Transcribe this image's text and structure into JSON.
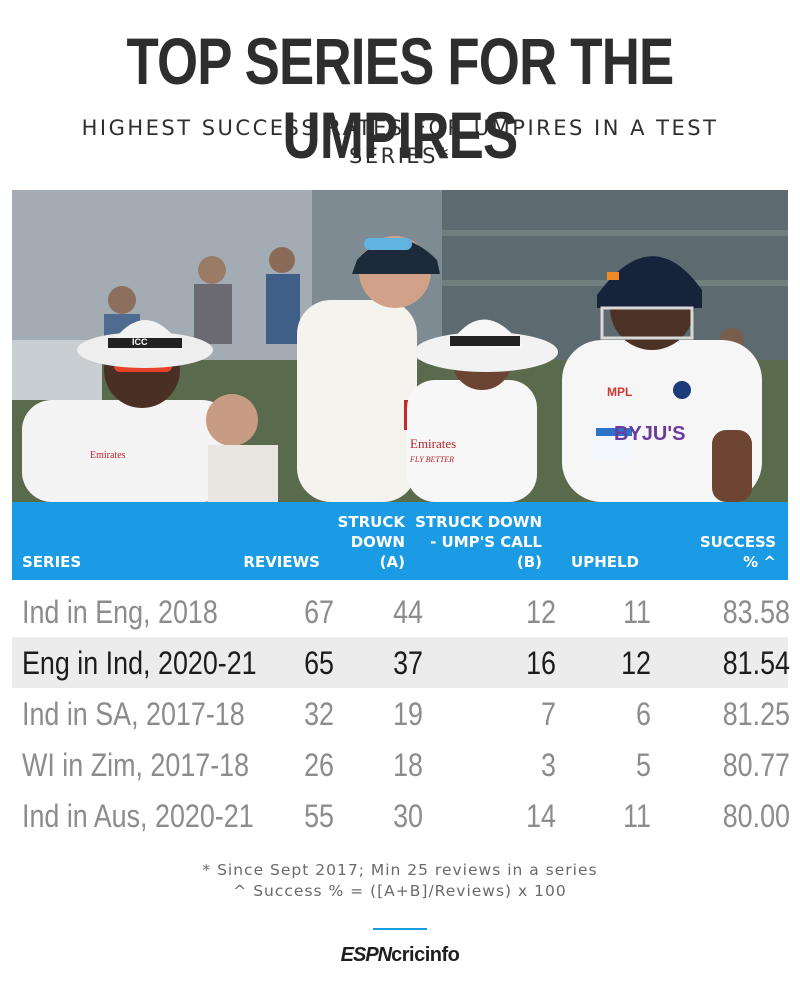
{
  "title": "TOP SERIES FOR THE UMPIRES",
  "subtitle": "HIGHEST SUCCESS RATES FOR UMPIRES IN A TEST SERIES*",
  "columns": {
    "series": "SERIES",
    "reviews": "REVIEWS",
    "struck_line1": "STRUCK",
    "struck_line2": "DOWN",
    "struck_line3": "(A)",
    "ump_line1": "STRUCK DOWN",
    "ump_line2": "- UMP'S CALL",
    "ump_line3": "(B)",
    "upheld": "UPHELD",
    "success_line1": "SUCCESS",
    "success_line2": "% ^"
  },
  "rows": [
    {
      "series": "Ind in Eng, 2018",
      "reviews": "67",
      "struck": "44",
      "ump": "12",
      "upheld": "11",
      "success": "83.58"
    },
    {
      "series": "Eng in Ind, 2020-21",
      "reviews": "65",
      "struck": "37",
      "ump": "16",
      "upheld": "12",
      "success": "81.54"
    },
    {
      "series": "Ind in SA, 2017-18",
      "reviews": "32",
      "struck": "19",
      "ump": "7",
      "upheld": "6",
      "success": "81.25"
    },
    {
      "series": "WI in Zim, 2017-18",
      "reviews": "26",
      "struck": "18",
      "ump": "3",
      "upheld": "5",
      "success": "80.77"
    },
    {
      "series": "Ind in Aus, 2020-21",
      "reviews": "55",
      "struck": "30",
      "ump": "14",
      "upheld": "11",
      "success": "80.00"
    }
  ],
  "highlighted_row": 1,
  "notes": {
    "line1": "* Since Sept 2017; Min 25 reviews in a series",
    "line2": "^ Success % = ([A+B]/Reviews) x 100"
  },
  "logo": {
    "part1": "ESPN",
    "part2": "cricinfo"
  },
  "photo": {
    "umpire_cap_text": "ICC",
    "sponsor_text": "Emirates",
    "sponsor_tagline": "FLY BETTER",
    "jersey_text_1": "MPL",
    "jersey_text_2": "BYJU'S"
  },
  "colors": {
    "accent": "#1a9be3",
    "highlight_row": "#ececec",
    "title": "#2e2e2e"
  }
}
